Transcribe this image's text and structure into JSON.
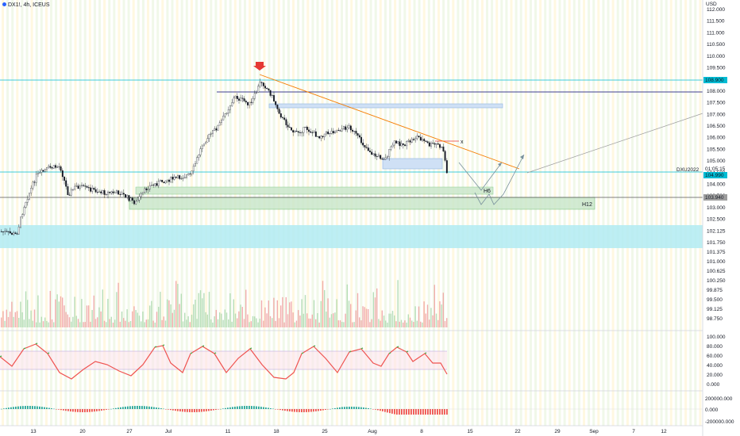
{
  "header": {
    "symbol": "DX1!, 4h, ICEUS"
  },
  "price_axis": {
    "currency": "USD",
    "ticks": [
      "112.000",
      "111.500",
      "111.000",
      "110.500",
      "110.000",
      "109.500",
      "108.500",
      "108.000",
      "107.500",
      "107.000",
      "106.500",
      "106.000",
      "105.500",
      "105.000",
      "104.500",
      "104.000",
      "103.500",
      "103.000",
      "102.500",
      "102.125",
      "101.750",
      "101.375",
      "101.000",
      "100.625",
      "100.250",
      "99.875",
      "99.500",
      "99.125",
      "98.750"
    ],
    "badges": {
      "top_line": "108.900",
      "current": "104.990",
      "mid": "103.940"
    },
    "countdown": "01:05:15",
    "series_label": "DXU2022"
  },
  "oscillator_axis": {
    "ticks": [
      "100.000",
      "80.000",
      "60.000",
      "40.000",
      "20.000",
      "0.000"
    ]
  },
  "macd_axis": {
    "ticks": [
      "200000.000",
      "0.000",
      "-200000.000"
    ]
  },
  "time_axis": {
    "labels": [
      {
        "t": "13",
        "x": 42
      },
      {
        "t": "20",
        "x": 104
      },
      {
        "t": "27",
        "x": 163
      },
      {
        "t": "Jul",
        "x": 212
      },
      {
        "t": "11",
        "x": 287
      },
      {
        "t": "18",
        "x": 348
      },
      {
        "t": "25",
        "x": 409
      },
      {
        "t": "Aug",
        "x": 469
      },
      {
        "t": "8",
        "x": 531
      },
      {
        "t": "15",
        "x": 592
      },
      {
        "t": "22",
        "x": 652
      },
      {
        "t": "29",
        "x": 702
      },
      {
        "t": "Sep",
        "x": 748
      },
      {
        "t": "7",
        "x": 798
      },
      {
        "t": "12",
        "x": 836
      }
    ]
  },
  "annotations": {
    "box_h6": "H6",
    "box_h12": "H12",
    "marker_x": "x"
  },
  "colors": {
    "up": "#26a69a",
    "down": "#ef5350",
    "cyan": "#00bcd4",
    "navy": "#3f3f8f",
    "trend": "#f57c00",
    "osc": "#4caf50"
  }
}
